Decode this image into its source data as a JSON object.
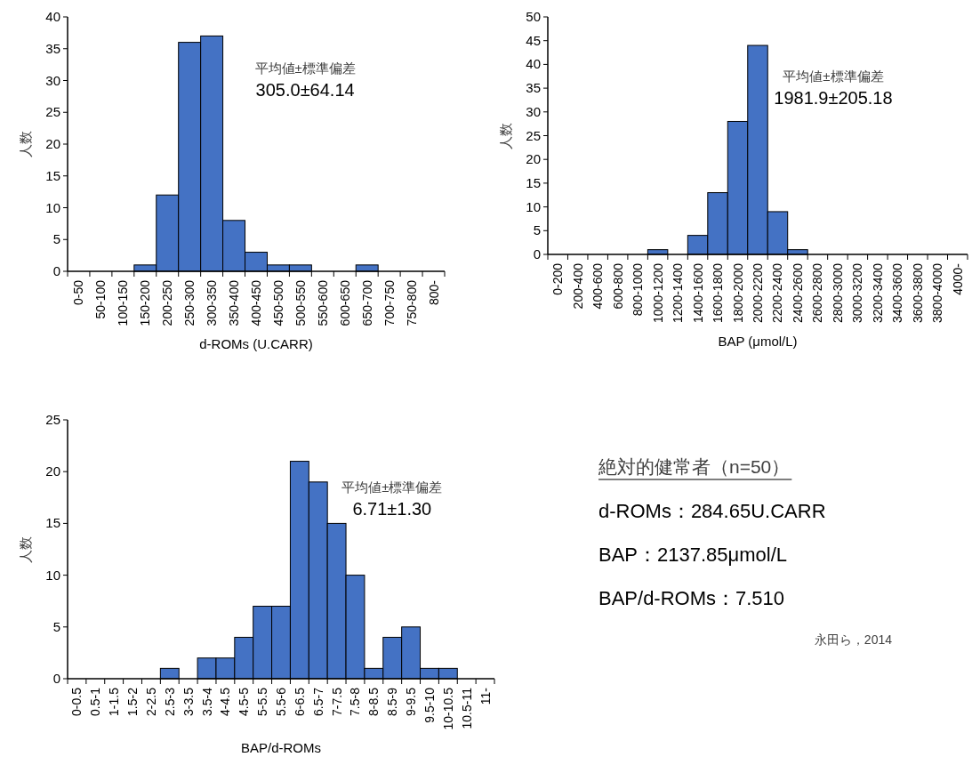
{
  "chart_data": [
    {
      "type": "bar",
      "ylabel": "人数",
      "xlabel": "d-ROMs (U.CARR)",
      "color": "#4472c4",
      "categories": [
        "0-50",
        "50-100",
        "100-150",
        "150-200",
        "200-250",
        "250-300",
        "300-350",
        "350-400",
        "400-450",
        "450-500",
        "500-550",
        "550-600",
        "600-650",
        "650-700",
        "700-750",
        "750-800",
        "800-"
      ],
      "values": [
        0,
        0,
        0,
        1,
        12,
        36,
        37,
        8,
        3,
        1,
        1,
        0,
        0,
        1,
        0,
        0,
        0
      ],
      "ylim": [
        0,
        40
      ],
      "yticks": [
        0,
        5,
        10,
        15,
        20,
        25,
        30,
        35,
        40
      ],
      "annotations": [
        "平均値±標準偏差",
        "305.0±64.14"
      ]
    },
    {
      "type": "bar",
      "ylabel": "人数",
      "xlabel": "BAP (μmol/L)",
      "color": "#4472c4",
      "categories": [
        "0-200",
        "200-400",
        "400-600",
        "600-800",
        "800-1000",
        "1000-1200",
        "1200-1400",
        "1400-1600",
        "1600-1800",
        "1800-2000",
        "2000-2200",
        "2200-2400",
        "2400-2600",
        "2600-2800",
        "2800-3000",
        "3000-3200",
        "3200-3400",
        "3400-3600",
        "3600-3800",
        "3800-4000",
        "4000-"
      ],
      "values": [
        0,
        0,
        0,
        0,
        0,
        1,
        0,
        4,
        13,
        28,
        44,
        9,
        1,
        0,
        0,
        0,
        0,
        0,
        0,
        0,
        0
      ],
      "ylim": [
        0,
        50
      ],
      "yticks": [
        0,
        5,
        10,
        15,
        20,
        25,
        30,
        35,
        40,
        45,
        50
      ],
      "annotations": [
        "平均値±標準偏差",
        "1981.9±205.18"
      ]
    },
    {
      "type": "bar",
      "ylabel": "人数",
      "xlabel": "BAP/d-ROMs",
      "color": "#4472c4",
      "categories": [
        "0-0.5",
        "0.5-1",
        "1-1.5",
        "1.5-2",
        "2-2.5",
        "2.5-3",
        "3-3.5",
        "3.5-4",
        "4-4.5",
        "4.5-5",
        "5-5.5",
        "5.5-6",
        "6-6.5",
        "6.5-7",
        "7-7.5",
        "7.5-8",
        "8-8.5",
        "8.5-9",
        "9-9.5",
        "9.5-10",
        "10-10.5",
        "10.5-11",
        "11-"
      ],
      "values": [
        0,
        0,
        0,
        0,
        0,
        1,
        0,
        2,
        2,
        4,
        7,
        7,
        21,
        19,
        15,
        10,
        1,
        4,
        5,
        1,
        1,
        0,
        0
      ],
      "ylim": [
        0,
        25
      ],
      "yticks": [
        0,
        5,
        10,
        15,
        20,
        25
      ],
      "annotations": [
        "平均値±標準偏差",
        "6.71±1.30"
      ]
    },
    {
      "type": "other",
      "title": "絶対的健常者（n=50）",
      "annotations": [
        "d-ROMs：284.65U.CARR",
        "BAP：2137.85μmol/L",
        "BAP/d-ROMs：7.510",
        "永田ら，2014"
      ]
    }
  ]
}
